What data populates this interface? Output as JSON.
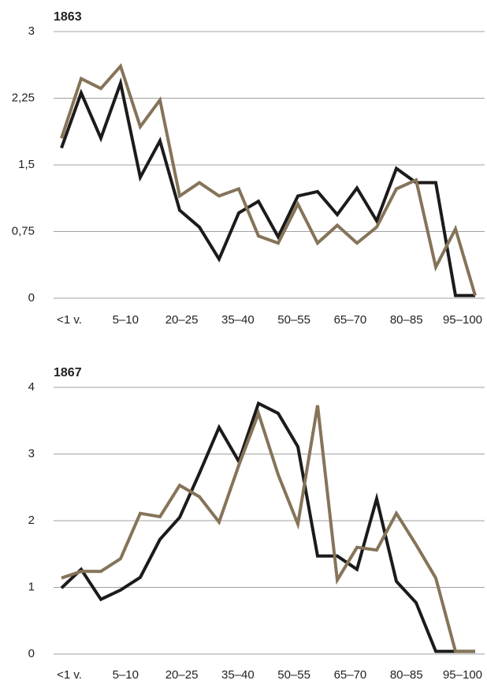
{
  "chart_data": [
    {
      "type": "line",
      "title": "1863",
      "categories": [
        "<1 v.",
        null,
        null,
        "5–10",
        null,
        null,
        "20–25",
        null,
        null,
        "35–40",
        null,
        null,
        "50–55",
        null,
        null,
        "65–70",
        null,
        null,
        "80–85",
        null,
        null,
        "95–100"
      ],
      "series": [
        {
          "color": "#1c1a1a",
          "values": [
            1.69,
            2.31,
            1.8,
            2.42,
            1.36,
            1.77,
            0.99,
            0.8,
            0.44,
            0.96,
            1.09,
            0.69,
            1.15,
            1.2,
            0.94,
            1.24,
            0.87,
            1.46,
            1.3,
            1.3,
            0.03,
            0.03
          ]
        },
        {
          "color": "#857459",
          "values": [
            1.8,
            2.47,
            2.36,
            2.61,
            1.93,
            2.23,
            1.15,
            1.3,
            1.15,
            1.23,
            0.7,
            0.62,
            1.06,
            0.62,
            0.82,
            0.62,
            0.8,
            1.23,
            1.33,
            0.35,
            0.78,
            0.03
          ]
        }
      ],
      "ylim": [
        0,
        3
      ],
      "yticks": [
        0,
        {
          "value": 0.75,
          "label": "0,75"
        },
        {
          "value": 1.5,
          "label": "1,5"
        },
        {
          "value": 2.25,
          "label": "2,25"
        },
        3
      ],
      "grid": true
    },
    {
      "type": "line",
      "title": "1867",
      "categories": [
        "<1 v.",
        null,
        null,
        "5–10",
        null,
        null,
        "20–25",
        null,
        null,
        "35–40",
        null,
        null,
        "50–55",
        null,
        null,
        "65–70",
        null,
        null,
        "80–85",
        null,
        null,
        "95–100"
      ],
      "series": [
        {
          "color": "#1c1a1a",
          "values": [
            0.99,
            1.27,
            0.82,
            0.96,
            1.15,
            1.72,
            2.05,
            2.71,
            3.4,
            2.89,
            3.76,
            3.61,
            3.11,
            1.47,
            1.47,
            1.27,
            2.33,
            1.09,
            0.77,
            0.04,
            0.04,
            0.04
          ]
        },
        {
          "color": "#857459",
          "values": [
            1.14,
            1.24,
            1.24,
            1.43,
            2.11,
            2.06,
            2.53,
            2.36,
            1.98,
            2.83,
            3.61,
            2.69,
            1.95,
            3.73,
            1.11,
            1.6,
            1.56,
            2.11,
            1.64,
            1.14,
            0.04,
            0.04
          ]
        }
      ],
      "ylim": [
        0,
        4
      ],
      "yticks": [
        0,
        1,
        2,
        3,
        4
      ],
      "grid": true
    }
  ]
}
